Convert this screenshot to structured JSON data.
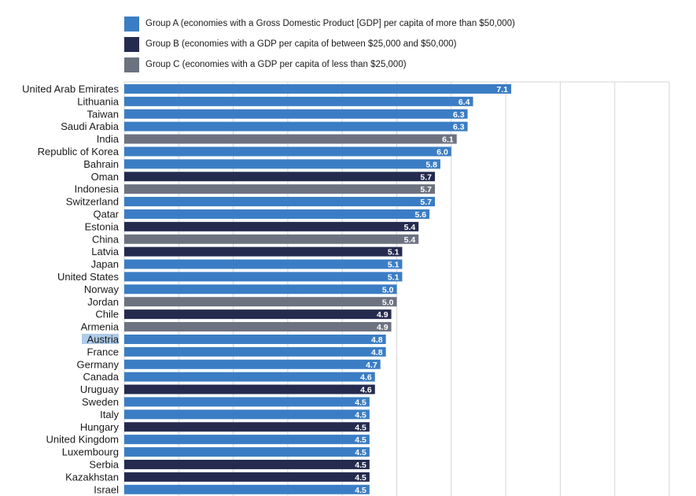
{
  "legend": [
    {
      "key": "A",
      "label": "Group A (economies with a Gross Domestic Product [GDP] per capita of more than $50,000)",
      "color": "#3b7dc4"
    },
    {
      "key": "B",
      "label": "Group B (economies with a GDP per capita of between $25,000 and $50,000)",
      "color": "#252b4f"
    },
    {
      "key": "C",
      "label": "Group C (economies with a GDP per capita of less than $25,000)",
      "color": "#6c7280"
    }
  ],
  "highlighted_category": "Austria",
  "highlight_color": "#aecbe8",
  "chart_data": {
    "type": "bar",
    "orientation": "horizontal",
    "title": "",
    "xlabel": "",
    "ylabel": "",
    "xlim": [
      0,
      10
    ],
    "grid": true,
    "legend_position": "top",
    "categories": [
      "United Arab Emirates",
      "Lithuania",
      "Taiwan",
      "Saudi Arabia",
      "India",
      "Republic of Korea",
      "Bahrain",
      "Oman",
      "Indonesia",
      "Switzerland",
      "Qatar",
      "Estonia",
      "China",
      "Latvia",
      "Japan",
      "United States",
      "Norway",
      "Jordan",
      "Chile",
      "Armenia",
      "Austria",
      "France",
      "Germany",
      "Canada",
      "Uruguay",
      "Sweden",
      "Italy",
      "Hungary",
      "United Kingdom",
      "Luxembourg",
      "Serbia",
      "Kazakhstan",
      "Israel"
    ],
    "values": [
      7.1,
      6.4,
      6.3,
      6.3,
      6.1,
      6.0,
      5.8,
      5.7,
      5.7,
      5.7,
      5.6,
      5.4,
      5.4,
      5.1,
      5.1,
      5.1,
      5.0,
      5.0,
      4.9,
      4.9,
      4.8,
      4.8,
      4.7,
      4.6,
      4.6,
      4.5,
      4.5,
      4.5,
      4.5,
      4.5,
      4.5,
      4.5,
      4.5
    ],
    "value_labels": [
      "7.1",
      "6.4",
      "6.3",
      "6.3",
      "6.1",
      "6.0",
      "5.8",
      "5.7",
      "5.7",
      "5.7",
      "5.6",
      "5.4",
      "5.4",
      "5.1",
      "5.1",
      "5.1",
      "5.0",
      "5.0",
      "4.9",
      "4.9",
      "4.8",
      "4.8",
      "4.7",
      "4.6",
      "4.6",
      "4.5",
      "4.5",
      "4.5",
      "4.5",
      "4.5",
      "4.5",
      "4.5",
      "4.5"
    ],
    "groups": [
      "A",
      "A",
      "A",
      "A",
      "C",
      "A",
      "A",
      "B",
      "C",
      "A",
      "A",
      "B",
      "C",
      "B",
      "A",
      "A",
      "A",
      "C",
      "B",
      "C",
      "A",
      "A",
      "A",
      "A",
      "B",
      "A",
      "A",
      "B",
      "A",
      "A",
      "B",
      "B",
      "A"
    ]
  }
}
